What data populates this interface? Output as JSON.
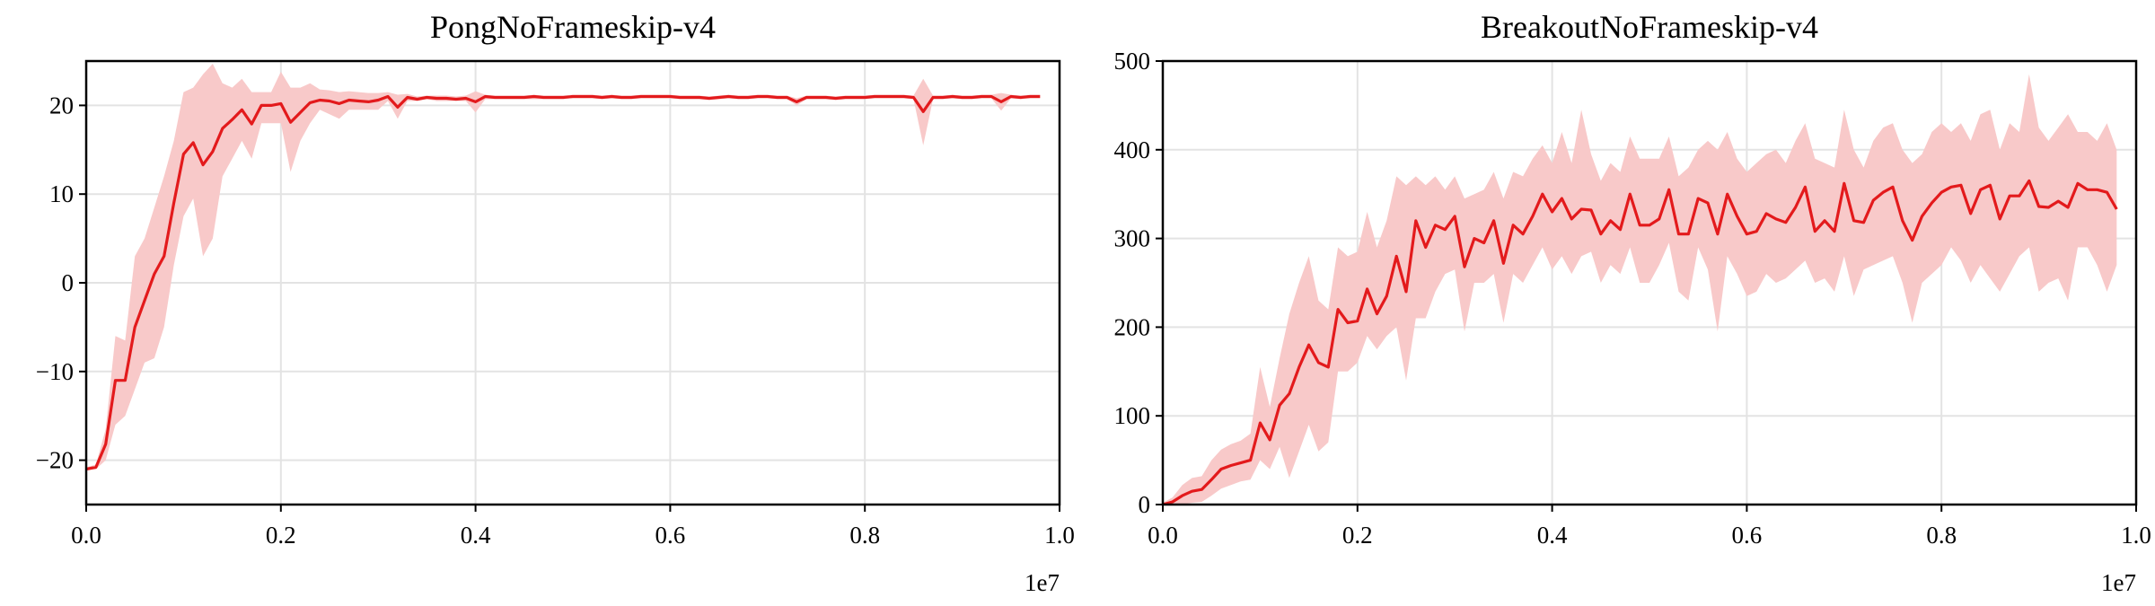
{
  "chart_data": [
    {
      "type": "line",
      "title": "PongNoFrameskip-v4",
      "xlabel": "",
      "ylabel": "",
      "x_offset_label": "1e7",
      "xlim": [
        0,
        1.0
      ],
      "ylim": [
        -25,
        25
      ],
      "xticks": [
        0.0,
        0.2,
        0.4,
        0.6,
        0.8,
        1.0
      ],
      "xtick_labels": [
        "0.0",
        "0.2",
        "0.4",
        "0.6",
        "0.8",
        "1.0"
      ],
      "yticks": [
        -20,
        -10,
        0,
        10,
        20
      ],
      "ytick_labels": [
        "−20",
        "−10",
        "0",
        "10",
        "20"
      ],
      "grid": true,
      "line_color": "#e31a1c",
      "band_color": "#f8c9c9",
      "x": [
        0.0,
        0.01,
        0.02,
        0.03,
        0.04,
        0.05,
        0.06,
        0.07,
        0.08,
        0.09,
        0.1,
        0.11,
        0.12,
        0.13,
        0.14,
        0.15,
        0.16,
        0.17,
        0.18,
        0.19,
        0.2,
        0.21,
        0.22,
        0.23,
        0.24,
        0.25,
        0.26,
        0.27,
        0.28,
        0.29,
        0.3,
        0.31,
        0.32,
        0.33,
        0.34,
        0.35,
        0.36,
        0.37,
        0.38,
        0.39,
        0.4,
        0.41,
        0.42,
        0.43,
        0.44,
        0.45,
        0.46,
        0.47,
        0.48,
        0.49,
        0.5,
        0.51,
        0.52,
        0.53,
        0.54,
        0.55,
        0.56,
        0.57,
        0.58,
        0.59,
        0.6,
        0.61,
        0.62,
        0.63,
        0.64,
        0.65,
        0.66,
        0.67,
        0.68,
        0.69,
        0.7,
        0.71,
        0.72,
        0.73,
        0.74,
        0.75,
        0.76,
        0.77,
        0.78,
        0.79,
        0.8,
        0.81,
        0.82,
        0.83,
        0.84,
        0.85,
        0.86,
        0.87,
        0.88,
        0.89,
        0.9,
        0.91,
        0.92,
        0.93,
        0.94,
        0.95,
        0.96,
        0.97,
        0.98
      ],
      "mean": [
        -21.0,
        -20.8,
        -18.2,
        -11.0,
        -11.0,
        -5.0,
        -2.0,
        1.0,
        3.0,
        9.0,
        14.5,
        15.8,
        13.3,
        14.8,
        17.4,
        18.4,
        19.5,
        17.9,
        20.0,
        20.0,
        20.2,
        18.1,
        19.2,
        20.3,
        20.6,
        20.5,
        20.2,
        20.6,
        20.5,
        20.4,
        20.6,
        21.0,
        19.8,
        20.9,
        20.7,
        20.9,
        20.8,
        20.8,
        20.7,
        20.8,
        20.4,
        21.0,
        20.9,
        20.9,
        20.9,
        20.9,
        21.0,
        20.9,
        20.9,
        20.9,
        21.0,
        21.0,
        21.0,
        20.9,
        21.0,
        20.9,
        20.9,
        21.0,
        21.0,
        21.0,
        21.0,
        20.9,
        20.9,
        20.9,
        20.8,
        20.9,
        21.0,
        20.9,
        20.9,
        21.0,
        21.0,
        20.9,
        20.9,
        20.4,
        20.9,
        20.9,
        20.9,
        20.8,
        20.9,
        20.9,
        20.9,
        21.0,
        21.0,
        21.0,
        21.0,
        20.9,
        19.3,
        20.9,
        20.9,
        21.0,
        20.9,
        20.9,
        21.0,
        21.0,
        20.4,
        21.0,
        20.9,
        21.0,
        21.0
      ],
      "lower": [
        -21.0,
        -21.0,
        -20.0,
        -16.0,
        -15.0,
        -12.0,
        -9.0,
        -8.5,
        -5.0,
        2.0,
        7.5,
        9.5,
        3.0,
        5.0,
        12.0,
        14.0,
        16.0,
        14.0,
        18.0,
        18.0,
        18.0,
        12.5,
        16.0,
        18.0,
        19.5,
        19.0,
        18.5,
        19.5,
        19.5,
        19.5,
        19.5,
        20.5,
        18.5,
        20.5,
        20.5,
        20.7,
        20.5,
        20.5,
        20.5,
        20.5,
        19.2,
        20.7,
        20.7,
        20.7,
        20.7,
        20.7,
        20.7,
        20.7,
        20.7,
        20.7,
        20.8,
        20.8,
        20.8,
        20.7,
        20.8,
        20.7,
        20.7,
        20.8,
        20.8,
        20.8,
        20.8,
        20.7,
        20.7,
        20.7,
        20.6,
        20.7,
        20.8,
        20.7,
        20.7,
        20.8,
        20.8,
        20.7,
        20.7,
        20.0,
        20.7,
        20.7,
        20.7,
        20.6,
        20.7,
        20.7,
        20.7,
        20.8,
        20.8,
        20.8,
        20.8,
        20.7,
        15.5,
        20.7,
        20.7,
        20.8,
        20.7,
        20.7,
        20.8,
        20.8,
        19.4,
        20.8,
        20.7,
        20.8,
        20.8
      ],
      "upper": [
        -20.8,
        -20.5,
        -16.5,
        -6.0,
        -6.5,
        3.0,
        5.0,
        8.5,
        12.0,
        16.0,
        21.5,
        22.0,
        23.5,
        24.7,
        22.5,
        22.0,
        23.0,
        21.5,
        21.5,
        21.5,
        23.8,
        22.0,
        22.0,
        22.5,
        21.8,
        21.7,
        21.5,
        21.6,
        21.5,
        21.4,
        21.4,
        21.5,
        21.2,
        21.3,
        21.0,
        21.1,
        21.1,
        21.1,
        21.0,
        21.1,
        21.6,
        21.2,
        21.1,
        21.1,
        21.1,
        21.1,
        21.2,
        21.1,
        21.1,
        21.1,
        21.2,
        21.2,
        21.2,
        21.1,
        21.2,
        21.1,
        21.1,
        21.2,
        21.2,
        21.2,
        21.2,
        21.1,
        21.1,
        21.1,
        21.0,
        21.1,
        21.2,
        21.1,
        21.1,
        21.2,
        21.2,
        21.1,
        21.1,
        20.8,
        21.1,
        21.1,
        21.1,
        21.0,
        21.1,
        21.1,
        21.1,
        21.2,
        21.2,
        21.2,
        21.2,
        21.1,
        23.0,
        21.1,
        21.1,
        21.2,
        21.1,
        21.1,
        21.2,
        21.2,
        21.4,
        21.2,
        21.1,
        21.2,
        21.2
      ]
    },
    {
      "type": "line",
      "title": "BreakoutNoFrameskip-v4",
      "xlabel": "",
      "ylabel": "",
      "x_offset_label": "1e7",
      "xlim": [
        0,
        1.0
      ],
      "ylim": [
        0,
        500
      ],
      "xticks": [
        0.0,
        0.2,
        0.4,
        0.6,
        0.8,
        1.0
      ],
      "xtick_labels": [
        "0.0",
        "0.2",
        "0.4",
        "0.6",
        "0.8",
        "1.0"
      ],
      "yticks": [
        0,
        100,
        200,
        300,
        400,
        500
      ],
      "ytick_labels": [
        "0",
        "100",
        "200",
        "300",
        "400",
        "500"
      ],
      "grid": true,
      "line_color": "#e31a1c",
      "band_color": "#f8c9c9",
      "x": [
        0.0,
        0.01,
        0.02,
        0.03,
        0.04,
        0.05,
        0.06,
        0.07,
        0.08,
        0.09,
        0.1,
        0.11,
        0.12,
        0.13,
        0.14,
        0.15,
        0.16,
        0.17,
        0.18,
        0.19,
        0.2,
        0.21,
        0.22,
        0.23,
        0.24,
        0.25,
        0.26,
        0.27,
        0.28,
        0.29,
        0.3,
        0.31,
        0.32,
        0.33,
        0.34,
        0.35,
        0.36,
        0.37,
        0.38,
        0.39,
        0.4,
        0.41,
        0.42,
        0.43,
        0.44,
        0.45,
        0.46,
        0.47,
        0.48,
        0.49,
        0.5,
        0.51,
        0.52,
        0.53,
        0.54,
        0.55,
        0.56,
        0.57,
        0.58,
        0.59,
        0.6,
        0.61,
        0.62,
        0.63,
        0.64,
        0.65,
        0.66,
        0.67,
        0.68,
        0.69,
        0.7,
        0.71,
        0.72,
        0.73,
        0.74,
        0.75,
        0.76,
        0.77,
        0.78,
        0.79,
        0.8,
        0.81,
        0.82,
        0.83,
        0.84,
        0.85,
        0.86,
        0.87,
        0.88,
        0.89,
        0.9,
        0.91,
        0.92,
        0.93,
        0.94,
        0.95,
        0.96,
        0.97,
        0.98
      ],
      "mean": [
        0,
        3,
        10,
        15,
        17,
        28,
        40,
        44,
        47,
        50,
        92,
        73,
        112,
        125,
        155,
        180,
        160,
        155,
        220,
        205,
        207,
        243,
        215,
        235,
        280,
        240,
        320,
        290,
        315,
        310,
        325,
        268,
        300,
        295,
        320,
        272,
        315,
        305,
        325,
        350,
        330,
        345,
        322,
        333,
        332,
        305,
        320,
        310,
        350,
        315,
        315,
        322,
        355,
        305,
        305,
        345,
        340,
        305,
        350,
        325,
        305,
        308,
        328,
        322,
        318,
        335,
        358,
        308,
        320,
        308,
        362,
        320,
        318,
        343,
        352,
        358,
        320,
        298,
        325,
        340,
        352,
        358,
        360,
        328,
        355,
        360,
        322,
        348,
        348,
        365,
        336,
        335,
        342,
        335,
        362,
        355,
        355,
        352,
        333
      ],
      "lower": [
        0,
        0,
        0,
        2,
        3,
        10,
        18,
        22,
        26,
        28,
        50,
        40,
        65,
        30,
        60,
        90,
        60,
        70,
        150,
        150,
        160,
        190,
        175,
        190,
        200,
        140,
        210,
        210,
        240,
        260,
        265,
        195,
        250,
        250,
        260,
        205,
        260,
        250,
        270,
        290,
        265,
        280,
        260,
        280,
        285,
        250,
        270,
        260,
        290,
        250,
        250,
        270,
        295,
        240,
        230,
        290,
        265,
        195,
        280,
        260,
        235,
        240,
        260,
        250,
        255,
        265,
        275,
        250,
        255,
        240,
        280,
        235,
        265,
        270,
        275,
        280,
        250,
        205,
        250,
        260,
        270,
        290,
        275,
        250,
        270,
        255,
        240,
        260,
        280,
        290,
        240,
        250,
        255,
        230,
        290,
        290,
        270,
        240,
        270
      ],
      "upper": [
        2,
        8,
        22,
        30,
        32,
        50,
        62,
        68,
        72,
        80,
        155,
        110,
        165,
        215,
        250,
        280,
        230,
        220,
        290,
        280,
        285,
        330,
        290,
        320,
        370,
        360,
        370,
        360,
        370,
        355,
        370,
        345,
        350,
        355,
        375,
        345,
        375,
        370,
        390,
        405,
        385,
        420,
        385,
        445,
        395,
        365,
        385,
        375,
        415,
        390,
        390,
        390,
        415,
        370,
        380,
        400,
        410,
        400,
        420,
        390,
        375,
        385,
        395,
        400,
        385,
        410,
        430,
        390,
        385,
        380,
        445,
        400,
        380,
        410,
        425,
        430,
        400,
        385,
        395,
        420,
        430,
        420,
        430,
        410,
        440,
        445,
        400,
        430,
        420,
        485,
        425,
        410,
        425,
        440,
        420,
        420,
        410,
        430,
        400
      ]
    }
  ]
}
